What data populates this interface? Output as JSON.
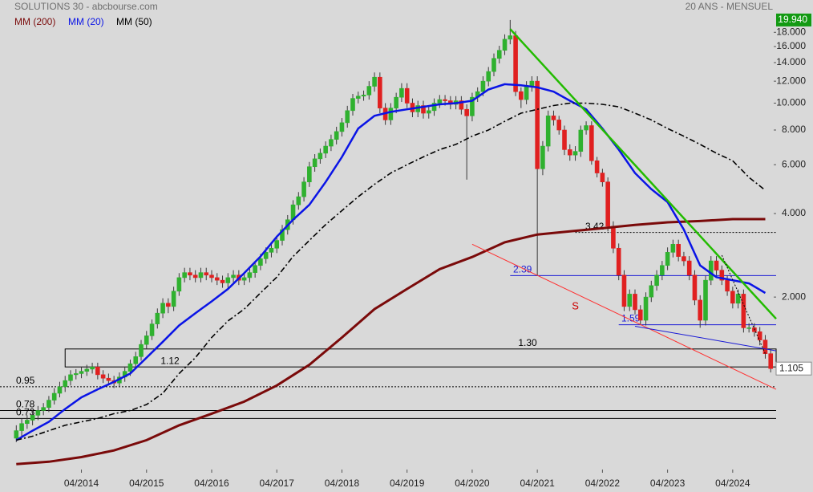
{
  "chart_data": {
    "type": "candlestick",
    "title": "SOLUTIONS 30 - abcbourse.com",
    "subtitle": "20 ANS - MENSUEL",
    "log_scale": true,
    "up_color": "#2fb12f",
    "down_color": "#e02020",
    "x": [
      "04/2013",
      "05/2013",
      "06/2013",
      "07/2013",
      "08/2013",
      "09/2013",
      "10/2013",
      "11/2013",
      "12/2013",
      "01/2014",
      "02/2014",
      "03/2014",
      "04/2014",
      "05/2014",
      "06/2014",
      "07/2014",
      "08/2014",
      "09/2014",
      "10/2014",
      "11/2014",
      "12/2014",
      "01/2015",
      "02/2015",
      "03/2015",
      "04/2015",
      "05/2015",
      "06/2015",
      "07/2015",
      "08/2015",
      "09/2015",
      "10/2015",
      "11/2015",
      "12/2015",
      "01/2016",
      "02/2016",
      "03/2016",
      "04/2016",
      "05/2016",
      "06/2016",
      "07/2016",
      "08/2016",
      "09/2016",
      "10/2016",
      "11/2016",
      "12/2016",
      "01/2017",
      "02/2017",
      "03/2017",
      "04/2017",
      "05/2017",
      "06/2017",
      "07/2017",
      "08/2017",
      "09/2017",
      "10/2017",
      "11/2017",
      "12/2017",
      "01/2018",
      "02/2018",
      "03/2018",
      "04/2018",
      "05/2018",
      "06/2018",
      "07/2018",
      "08/2018",
      "09/2018",
      "10/2018",
      "11/2018",
      "12/2018",
      "01/2019",
      "02/2019",
      "03/2019",
      "04/2019",
      "05/2019",
      "06/2019",
      "07/2019",
      "08/2019",
      "09/2019",
      "10/2019",
      "11/2019",
      "12/2019",
      "01/2020",
      "02/2020",
      "03/2020",
      "04/2020",
      "05/2020",
      "06/2020",
      "07/2020",
      "08/2020",
      "09/2020",
      "10/2020",
      "11/2020",
      "12/2020",
      "01/2021",
      "02/2021",
      "03/2021",
      "04/2021",
      "05/2021",
      "06/2021",
      "07/2021",
      "08/2021",
      "09/2021",
      "10/2021",
      "11/2021",
      "12/2021",
      "01/2022",
      "02/2022",
      "03/2022",
      "04/2022",
      "05/2022",
      "06/2022",
      "07/2022",
      "08/2022",
      "09/2022",
      "10/2022",
      "11/2022",
      "12/2022",
      "01/2023",
      "02/2023",
      "03/2023",
      "04/2023",
      "05/2023",
      "06/2023",
      "07/2023",
      "08/2023",
      "09/2023",
      "10/2023",
      "11/2023",
      "12/2023",
      "01/2024",
      "02/2024",
      "03/2024",
      "04/2024",
      "05/2024",
      "06/2024",
      "07/2024",
      "08/2024",
      "09/2024",
      "10/2024",
      "11/2024"
    ],
    "open": [
      0.62,
      0.66,
      0.7,
      0.72,
      0.75,
      0.78,
      0.8,
      0.85,
      0.9,
      0.95,
      1,
      1.05,
      1.06,
      1.08,
      1.1,
      1.12,
      1.05,
      1.02,
      1,
      0.98,
      1.03,
      1.08,
      1.15,
      1.22,
      1.35,
      1.45,
      1.6,
      1.75,
      1.9,
      1.85,
      2.1,
      2.35,
      2.45,
      2.4,
      2.35,
      2.45,
      2.4,
      2.35,
      2.3,
      2.25,
      2.35,
      2.4,
      2.3,
      2.35,
      2.45,
      2.6,
      2.75,
      2.9,
      3,
      3.2,
      3.5,
      3.8,
      4.3,
      4.6,
      5.2,
      5.9,
      6.3,
      6.6,
      7,
      7.4,
      7.9,
      8.5,
      9.4,
      10.4,
      10.6,
      10.7,
      11.5,
      12.4,
      9.6,
      8.7,
      9.6,
      10.5,
      11.3,
      10,
      9.3,
      9.8,
      9.2,
      9.4,
      10,
      10.3,
      10.2,
      9.9,
      10.2,
      9.5,
      9,
      10.5,
      11,
      12,
      13,
      14.5,
      15.5,
      17,
      17.5,
      11,
      10.3,
      11.5,
      12,
      5.8,
      7,
      9,
      8.7,
      8,
      6.8,
      6.5,
      6.7,
      8,
      8.3,
      6.2,
      5.6,
      5.2,
      3.6,
      3,
      2.4,
      1.85,
      2.05,
      1.8,
      1.65,
      2,
      2.2,
      2.4,
      2.6,
      2.9,
      3.1,
      2.8,
      2.7,
      2.4,
      1.95,
      1.65,
      2.3,
      2.7,
      2.5,
      2.3,
      2.1,
      1.9,
      2.05,
      1.55,
      1.55,
      1.5,
      1.4,
      1.25
    ],
    "high": [
      0.69,
      0.73,
      0.75,
      0.78,
      0.81,
      0.83,
      0.88,
      0.94,
      0.99,
      1.04,
      1.09,
      1.1,
      1.12,
      1.14,
      1.16,
      1.16,
      1.09,
      1.06,
      1.04,
      1.07,
      1.12,
      1.19,
      1.27,
      1.4,
      1.51,
      1.66,
      1.82,
      1.98,
      1.98,
      2.18,
      2.44,
      2.55,
      2.55,
      2.5,
      2.55,
      2.55,
      2.5,
      2.44,
      2.39,
      2.44,
      2.5,
      2.5,
      2.44,
      2.55,
      2.7,
      2.86,
      3.02,
      3.12,
      3.33,
      3.64,
      3.95,
      4.47,
      4.78,
      5.41,
      6.14,
      6.55,
      6.86,
      7.28,
      7.7,
      8.22,
      8.84,
      9.78,
      10.8,
      11,
      11.1,
      12,
      12.9,
      12.9,
      10,
      10,
      10.9,
      11.8,
      11.8,
      10.4,
      10.2,
      10.2,
      9.8,
      10.4,
      10.7,
      10.7,
      10.6,
      10.6,
      10.6,
      9.9,
      10.9,
      11.4,
      12.5,
      13.5,
      15.1,
      16.1,
      17.7,
      19.94,
      18.2,
      11.4,
      12,
      12.5,
      12.5,
      7.3,
      9.4,
      9.4,
      9,
      8.3,
      7.1,
      7,
      8.3,
      8.6,
      8.6,
      6.4,
      5.8,
      5.4,
      3.75,
      3.12,
      2.5,
      2.13,
      2.13,
      1.87,
      2.08,
      2.29,
      2.5,
      2.7,
      3.02,
      3.22,
      3.22,
      2.91,
      2.81,
      2.5,
      2.03,
      2.39,
      2.81,
      2.81,
      2.6,
      2.39,
      2.18,
      2.13,
      2.13,
      1.61,
      1.61,
      1.56,
      1.46,
      1.3
    ],
    "low": [
      0.6,
      0.63,
      0.67,
      0.69,
      0.72,
      0.75,
      0.77,
      0.82,
      0.87,
      0.91,
      0.96,
      1.01,
      1.02,
      1.04,
      1.06,
      1.01,
      0.98,
      0.96,
      0.94,
      0.95,
      0.99,
      1.04,
      1.11,
      1.18,
      1.3,
      1.4,
      1.54,
      1.68,
      1.75,
      1.78,
      2.02,
      2.26,
      2.3,
      2.26,
      2.26,
      2.3,
      2.26,
      2.21,
      2.16,
      2.16,
      2.26,
      2.21,
      2.21,
      2.26,
      2.35,
      2.5,
      2.64,
      2.78,
      2.88,
      3.07,
      3.36,
      3.65,
      4.13,
      4.42,
      4.99,
      5.66,
      6.05,
      6.34,
      6.72,
      7.1,
      7.58,
      8.16,
      9.02,
      9.98,
      10.2,
      10.3,
      11,
      9.2,
      8.35,
      8.35,
      9.2,
      10.1,
      9.6,
      8.9,
      8.9,
      8.8,
      8.8,
      9,
      9.6,
      9.8,
      9.5,
      9.5,
      9.1,
      5.3,
      8.6,
      10.1,
      10.6,
      11.5,
      12.5,
      13.9,
      14.9,
      16.3,
      10.6,
      9.6,
      9.9,
      11,
      2.39,
      5.5,
      6.7,
      8.3,
      7.7,
      6.5,
      6.2,
      6.2,
      6.4,
      7.7,
      6,
      5.4,
      5,
      3.45,
      2.88,
      2.3,
      1.78,
      1.78,
      1.73,
      1.59,
      1.58,
      1.92,
      2.11,
      2.3,
      2.5,
      2.78,
      2.69,
      2.59,
      2.3,
      1.87,
      1.55,
      1.58,
      2.21,
      2.4,
      2.21,
      2.02,
      1.82,
      1.82,
      1.49,
      1.49,
      1.44,
      1.34,
      1.2,
      1.07
    ],
    "close": [
      0.66,
      0.7,
      0.72,
      0.75,
      0.78,
      0.8,
      0.85,
      0.9,
      0.95,
      1,
      1.05,
      1.06,
      1.08,
      1.1,
      1.12,
      1.05,
      1.02,
      1,
      0.98,
      1.03,
      1.08,
      1.15,
      1.22,
      1.35,
      1.45,
      1.6,
      1.75,
      1.9,
      1.85,
      2.1,
      2.35,
      2.45,
      2.4,
      2.35,
      2.45,
      2.4,
      2.35,
      2.3,
      2.25,
      2.35,
      2.4,
      2.3,
      2.35,
      2.45,
      2.6,
      2.75,
      2.9,
      3,
      3.2,
      3.5,
      3.8,
      4.3,
      4.6,
      5.2,
      5.9,
      6.3,
      6.6,
      7,
      7.4,
      7.9,
      8.5,
      9.4,
      10.4,
      10.6,
      10.7,
      11.5,
      12.4,
      9.6,
      8.7,
      9.6,
      10.5,
      11.3,
      10,
      9.3,
      9.8,
      9.2,
      9.4,
      10,
      10.3,
      10.2,
      9.9,
      10.2,
      9.5,
      9,
      10.5,
      11,
      12,
      13,
      14.5,
      15.5,
      17,
      17.5,
      11,
      10.3,
      11.5,
      12,
      5.8,
      7,
      9,
      8.7,
      8,
      6.8,
      6.5,
      6.7,
      8,
      8.3,
      6.2,
      5.6,
      5.2,
      3.6,
      3,
      2.4,
      1.85,
      2.05,
      1.8,
      1.65,
      2,
      2.2,
      2.4,
      2.6,
      2.9,
      3.1,
      2.8,
      2.7,
      2.4,
      1.95,
      1.65,
      2.3,
      2.7,
      2.5,
      2.3,
      2.1,
      1.9,
      2.05,
      1.55,
      1.55,
      1.5,
      1.4,
      1.25,
      1.105
    ],
    "xlim": [
      "01/2013",
      "12/2024"
    ],
    "xticks": [
      "04/2014",
      "04/2015",
      "04/2016",
      "04/2017",
      "04/2018",
      "04/2019",
      "04/2020",
      "04/2021",
      "04/2022",
      "04/2023",
      "04/2024"
    ],
    "ylim": [
      0.478,
      21.3
    ],
    "yticks": [
      {
        "value": 2,
        "label": "2.000"
      },
      {
        "value": 4,
        "label": "4.000"
      },
      {
        "value": 6,
        "label": "6.000"
      },
      {
        "value": 8,
        "label": "8.000"
      },
      {
        "value": 10,
        "label": "10.000"
      },
      {
        "value": 12,
        "label": "12.000"
      },
      {
        "value": 14,
        "label": "14.000"
      },
      {
        "value": 16,
        "label": "16.000"
      },
      {
        "value": 18,
        "label": "18.000"
      }
    ],
    "overlays": [
      {
        "name": "MM (200)",
        "color": "#7a0a0a",
        "x": [
          "04/2013",
          "10/2013",
          "04/2014",
          "10/2014",
          "04/2015",
          "10/2015",
          "04/2016",
          "10/2016",
          "04/2017",
          "10/2017",
          "04/2018",
          "10/2018",
          "04/2019",
          "10/2019",
          "04/2020",
          "10/2020",
          "04/2021",
          "10/2021",
          "04/2022",
          "10/2022",
          "04/2023",
          "10/2023",
          "04/2024",
          "10/2024"
        ],
        "values": [
          0.5,
          0.51,
          0.53,
          0.56,
          0.61,
          0.69,
          0.76,
          0.84,
          0.96,
          1.14,
          1.43,
          1.81,
          2.14,
          2.52,
          2.79,
          3.15,
          3.36,
          3.45,
          3.54,
          3.64,
          3.72,
          3.76,
          3.82,
          3.82
        ]
      },
      {
        "name": "MM (20)",
        "color": "#0a14e6",
        "x": [
          "04/2013",
          "07/2013",
          "10/2013",
          "01/2014",
          "04/2014",
          "07/2014",
          "10/2014",
          "01/2015",
          "04/2015",
          "07/2015",
          "10/2015",
          "01/2016",
          "04/2016",
          "07/2016",
          "10/2016",
          "01/2017",
          "04/2017",
          "07/2017",
          "10/2017",
          "01/2018",
          "04/2018",
          "07/2018",
          "10/2018",
          "01/2019",
          "04/2019",
          "07/2019",
          "10/2019",
          "01/2020",
          "04/2020",
          "07/2020",
          "10/2020",
          "01/2021",
          "04/2021",
          "07/2021",
          "10/2021",
          "01/2022",
          "04/2022",
          "07/2022",
          "10/2022",
          "01/2023",
          "04/2023",
          "07/2023",
          "10/2023",
          "01/2024",
          "04/2024",
          "07/2024",
          "10/2024"
        ],
        "values": [
          0.61,
          0.66,
          0.71,
          0.79,
          0.87,
          0.93,
          0.99,
          1.06,
          1.21,
          1.38,
          1.58,
          1.75,
          1.93,
          2.14,
          2.44,
          2.8,
          3.3,
          3.8,
          4.3,
          5.2,
          6.4,
          8.1,
          9,
          9.3,
          9.5,
          9.7,
          9.9,
          10,
          10.2,
          11.2,
          11.7,
          11.6,
          11.4,
          11,
          10.2,
          9.5,
          8.1,
          6.8,
          5.6,
          4.9,
          4.4,
          3.5,
          2.6,
          2.36,
          2.3,
          2.24,
          2.07
        ]
      },
      {
        "name": "MM (50)",
        "color": "#000000",
        "dash": true,
        "x": [
          "04/2013",
          "07/2013",
          "10/2013",
          "01/2014",
          "04/2014",
          "07/2014",
          "10/2014",
          "01/2015",
          "04/2015",
          "07/2015",
          "10/2015",
          "01/2016",
          "04/2016",
          "07/2016",
          "10/2016",
          "01/2017",
          "04/2017",
          "07/2017",
          "10/2017",
          "01/2018",
          "04/2018",
          "07/2018",
          "10/2018",
          "01/2019",
          "04/2019",
          "07/2019",
          "10/2019",
          "01/2020",
          "04/2020",
          "07/2020",
          "10/2020",
          "01/2021",
          "04/2021",
          "07/2021",
          "10/2021",
          "01/2022",
          "04/2022",
          "07/2022",
          "10/2022",
          "01/2023",
          "04/2023",
          "07/2023",
          "10/2023",
          "01/2024",
          "04/2024",
          "07/2024",
          "10/2024"
        ],
        "values": [
          0.61,
          0.63,
          0.66,
          0.69,
          0.71,
          0.73,
          0.76,
          0.78,
          0.82,
          0.9,
          1.06,
          1.21,
          1.43,
          1.64,
          1.81,
          2.07,
          2.36,
          2.8,
          3.2,
          3.65,
          4.1,
          4.6,
          5.1,
          5.6,
          6,
          6.4,
          6.8,
          7.1,
          7.6,
          8,
          8.6,
          9.2,
          9.5,
          9.8,
          10,
          10,
          9.9,
          9.7,
          9.2,
          8.7,
          8.1,
          7.6,
          7.1,
          6.6,
          6.2,
          5.4,
          4.85
        ]
      }
    ],
    "levels": [
      {
        "value": 3.42,
        "label": "3.42",
        "start": "11/2021",
        "color": "#000000",
        "dotted": true
      },
      {
        "value": 2.39,
        "label": "2.39",
        "start": "11/2020",
        "color": "#1a1ad6",
        "dotted": false
      },
      {
        "value": 1.59,
        "label": "1.59",
        "start": "07/2022",
        "color": "#1a1ad6",
        "dotted": false
      },
      {
        "value": 0.95,
        "label": "0.95",
        "start": "01/2013",
        "color": "#000000",
        "dotted": true
      },
      {
        "value": 0.78,
        "label": "0.78",
        "start": "01/2013",
        "color": "#000000",
        "dotted": false
      },
      {
        "value": 0.73,
        "label": "0.73",
        "start": "01/2013",
        "color": "#000000",
        "dotted": false
      }
    ],
    "zone": {
      "top": {
        "value": 1.3,
        "label": "1.30"
      },
      "bottom": {
        "value": 1.12,
        "label": "1.12"
      },
      "start": "01/2014"
    },
    "trendlines": [
      {
        "x": [
          "11/2020",
          "12/2024"
        ],
        "values": [
          18.5,
          1.67
        ],
        "color": "#22bb00"
      },
      {
        "x": [
          "04/2020",
          "12/2024"
        ],
        "values": [
          3.1,
          0.93
        ],
        "color": "#ff3030"
      },
      {
        "x": [
          "10/2022",
          "12/2024"
        ],
        "values": [
          1.57,
          1.28
        ],
        "color": "#1a1ad6"
      },
      {
        "x": [
          "02/2024",
          "10/2024"
        ],
        "values": [
          2.83,
          1.25
        ],
        "color": "#000000",
        "dotted": true
      }
    ],
    "annotations": [
      {
        "text": "S",
        "x": "11/2021",
        "value": 1.85,
        "color": "#cc0000"
      }
    ],
    "high_marker": {
      "value": 19.94,
      "label": "19.940",
      "color": "#129a12"
    },
    "last_marker": {
      "value": 1.105,
      "label": "1.105"
    }
  }
}
